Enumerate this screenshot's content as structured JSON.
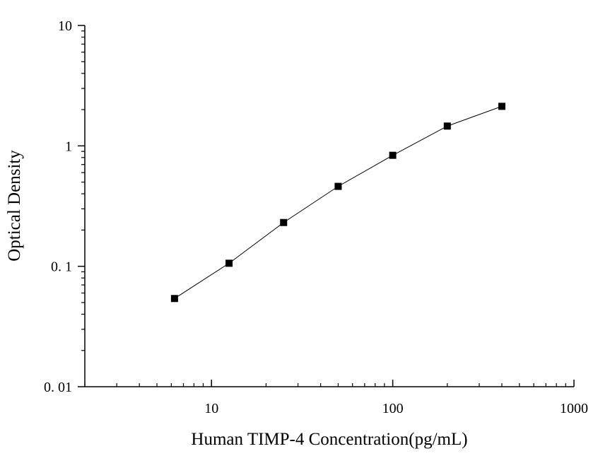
{
  "chart_data": {
    "type": "scatter",
    "title": "",
    "xlabel": "Human TIMP-4 Concentration(pg/mL)",
    "ylabel": "Optical Density",
    "x_scale": "log",
    "y_scale": "log",
    "xlim": [
      2,
      1000
    ],
    "ylim": [
      0.01,
      10
    ],
    "x_ticks": [
      {
        "value": 10,
        "label": "10"
      },
      {
        "value": 100,
        "label": "100"
      },
      {
        "value": 1000,
        "label": "1000"
      }
    ],
    "y_ticks": [
      {
        "value": 0.01,
        "label": "0. 01"
      },
      {
        "value": 0.1,
        "label": "0. 1"
      },
      {
        "value": 1,
        "label": "1"
      },
      {
        "value": 10,
        "label": "10"
      }
    ],
    "grid": false,
    "legend": "none",
    "series": [
      {
        "x": [
          6.25,
          12.5,
          25,
          50,
          100,
          200,
          400
        ],
        "y": [
          0.054,
          0.106,
          0.231,
          0.461,
          0.835,
          1.46,
          2.13
        ],
        "marker": "square",
        "connected": true,
        "color": "#000000"
      }
    ]
  }
}
